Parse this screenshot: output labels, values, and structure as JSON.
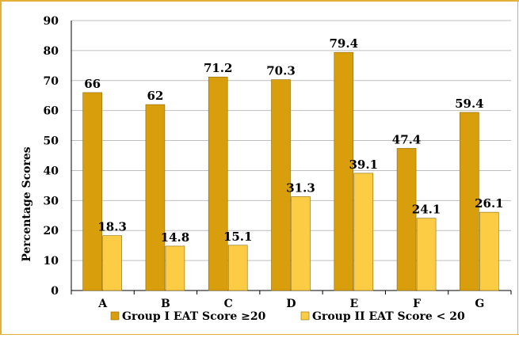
{
  "chart_data": {
    "type": "bar",
    "title": "",
    "xlabel": "",
    "ylabel": "Percentage Scores",
    "ylim": [
      0,
      90
    ],
    "yticks": [
      0,
      10,
      20,
      30,
      40,
      50,
      60,
      70,
      80,
      90
    ],
    "categories": [
      "A",
      "B",
      "C",
      "D",
      "E",
      "F",
      "G"
    ],
    "series": [
      {
        "name": "Group I EAT Score ≥20",
        "color": "#d99e0b",
        "values": [
          66,
          62,
          71.2,
          70.3,
          79.4,
          47.4,
          59.4
        ],
        "labels": [
          "66",
          "62",
          "71.2",
          "70.3",
          "79.4",
          "47.4",
          "59.4"
        ]
      },
      {
        "name": "Group II EAT Score < 20",
        "color": "#fccd44",
        "values": [
          18.3,
          14.8,
          15.1,
          31.3,
          39.1,
          24.1,
          26.1
        ],
        "labels": [
          "18.3",
          "14.8",
          "15.1",
          "31.3",
          "39.1",
          "24.1",
          "26.1"
        ]
      }
    ],
    "grid": true,
    "legend_position": "bottom"
  }
}
